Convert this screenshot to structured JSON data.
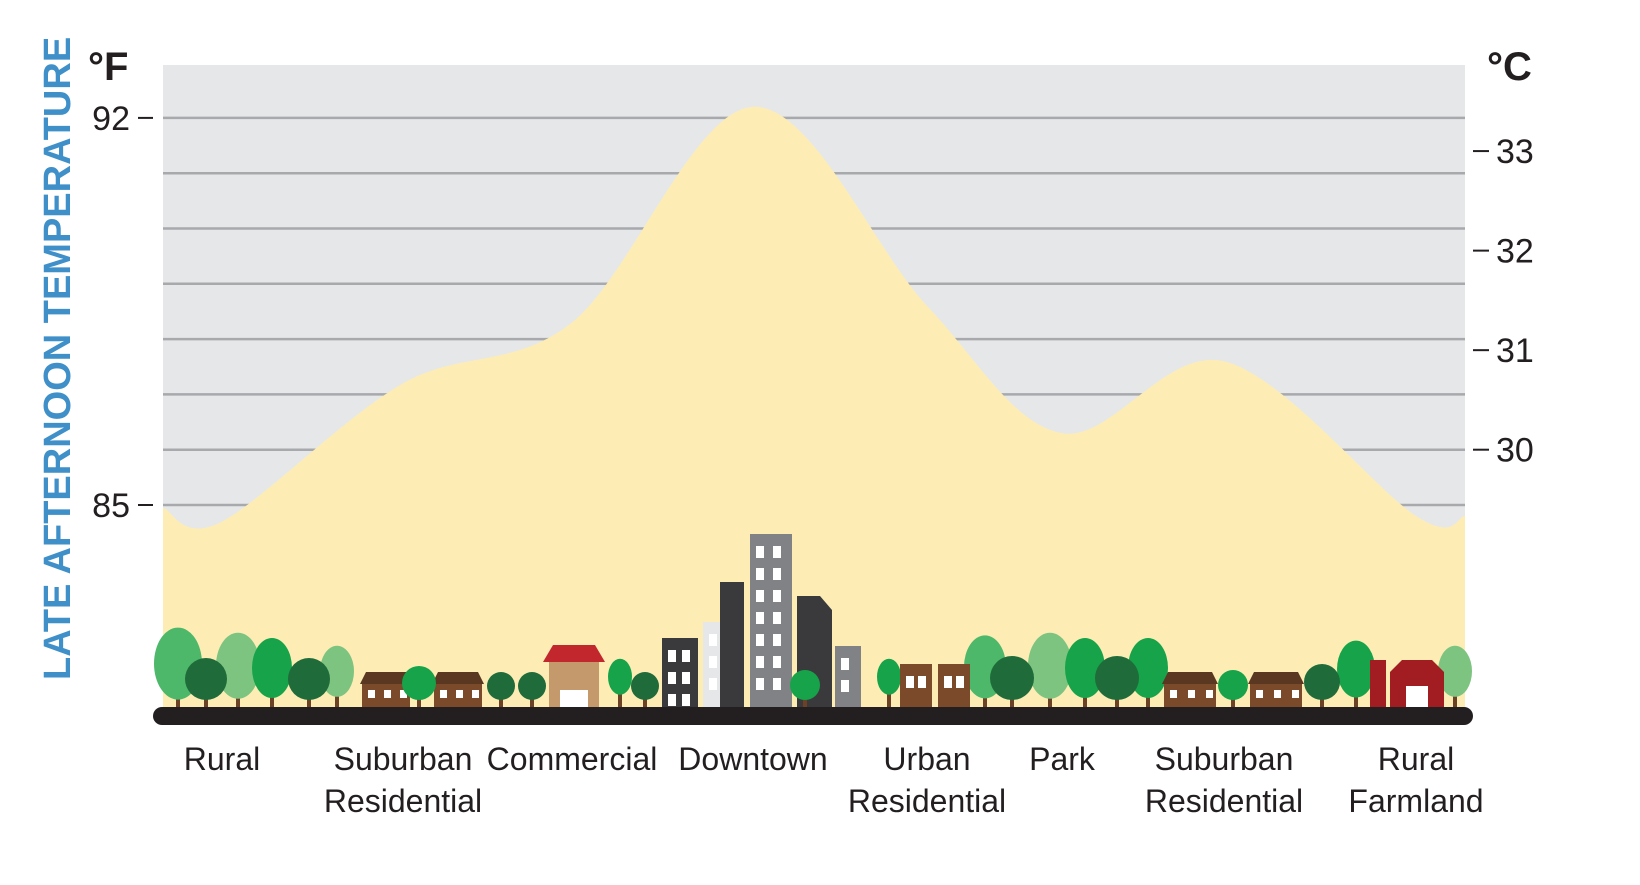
{
  "chart_data": {
    "type": "area",
    "title": "",
    "ylabel": "LATE AFTERNOON TEMPERATURE",
    "y_unit_left": "°F",
    "y_unit_right": "°C",
    "ylim_f": [
      81.3,
      93
    ],
    "left_ticks": [
      {
        "label": "92",
        "value": 92
      },
      {
        "label": "85",
        "value": 85
      }
    ],
    "right_ticks": [
      {
        "label": "33",
        "value": 33
      },
      {
        "label": "32",
        "value": 32
      },
      {
        "label": "31",
        "value": 31
      },
      {
        "label": "30",
        "value": 30
      }
    ],
    "gridlines_f": [
      85,
      86,
      87,
      88,
      89,
      90,
      91,
      92
    ],
    "grid": true,
    "categories": [
      {
        "lines": [
          "Rural"
        ]
      },
      {
        "lines": [
          "Suburban",
          "Residential"
        ]
      },
      {
        "lines": [
          "Commercial"
        ]
      },
      {
        "lines": [
          "Downtown"
        ]
      },
      {
        "lines": [
          "Urban",
          "Residential"
        ]
      },
      {
        "lines": [
          "Park"
        ]
      },
      {
        "lines": [
          "Suburban",
          "Residential"
        ]
      },
      {
        "lines": [
          "Rural",
          "Farmland"
        ]
      }
    ],
    "values_f": [
      84.7,
      87.2,
      88.3,
      92.2,
      88.6,
      86.3,
      87.6,
      84.8
    ],
    "colors": {
      "hot": "#ED1C24",
      "warm": "#F07A45",
      "mild": "#F8B27E",
      "cool": "#FDEDB5",
      "plot_bg": "#E6E7E8",
      "grid": "#A7A9AC",
      "ground": "#231F20",
      "ylabel": "#3F8FC9"
    }
  }
}
